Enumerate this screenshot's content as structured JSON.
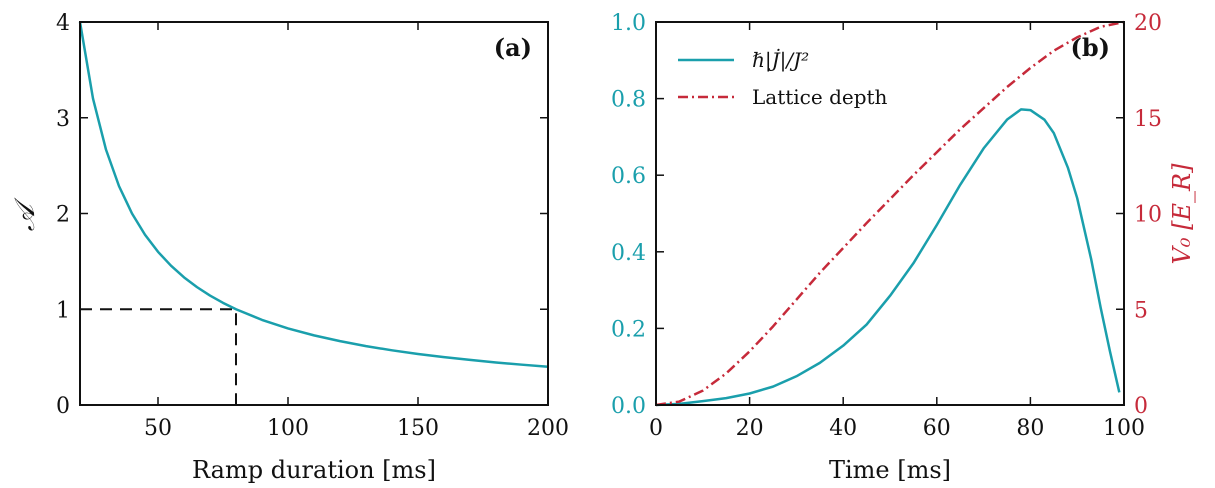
{
  "colors": {
    "teal": "#1a9fac",
    "red": "#c62a3a",
    "black": "#111111"
  },
  "chart_data": [
    {
      "type": "line",
      "panel_label": "(a)",
      "xlabel": "Ramp duration [ms]",
      "ylabel": "𝒜",
      "xlim": [
        20,
        200
      ],
      "ylim": [
        0,
        4
      ],
      "xticks": [
        50,
        100,
        150,
        200
      ],
      "yticks": [
        0,
        1,
        2,
        3,
        4
      ],
      "grid": false,
      "series": [
        {
          "color": "#1a9fac",
          "style": "solid",
          "x": [
            20,
            25,
            30,
            35,
            40,
            45,
            50,
            55,
            60,
            65,
            70,
            75,
            80,
            90,
            100,
            110,
            120,
            130,
            140,
            150,
            160,
            170,
            180,
            190,
            200
          ],
          "y": [
            4.0,
            3.2,
            2.667,
            2.286,
            2.0,
            1.778,
            1.6,
            1.455,
            1.333,
            1.231,
            1.143,
            1.067,
            1.0,
            0.889,
            0.8,
            0.727,
            0.667,
            0.615,
            0.571,
            0.533,
            0.5,
            0.471,
            0.444,
            0.421,
            0.4
          ]
        }
      ],
      "annotations": [
        {
          "style": "dashed",
          "color": "#111111",
          "x": [
            20,
            80,
            80
          ],
          "y": [
            1,
            1,
            0
          ]
        }
      ]
    },
    {
      "type": "line",
      "panel_label": "(b)",
      "xlabel": "Time [ms]",
      "xlim": [
        0,
        100
      ],
      "ylim": [
        0,
        1.0
      ],
      "ylim_right": [
        0,
        20
      ],
      "ylabel_right": "V₀ [E_R]",
      "xticks": [
        0,
        20,
        40,
        60,
        80,
        100
      ],
      "yticks": [
        "0.0",
        "0.2",
        "0.4",
        "0.6",
        "0.8",
        "1.0"
      ],
      "yticks_right": [
        0,
        5,
        10,
        15,
        20
      ],
      "grid": false,
      "legend_placement": "top-left",
      "series": [
        {
          "name": "ℏ|J̇|/J²",
          "axis": "left",
          "color": "#1a9fac",
          "style": "solid",
          "x": [
            0,
            5,
            10,
            15,
            20,
            25,
            30,
            35,
            40,
            45,
            50,
            55,
            60,
            65,
            70,
            75,
            78,
            80,
            83,
            85,
            88,
            90,
            93,
            95,
            97,
            99
          ],
          "y": [
            0.0,
            0.003,
            0.01,
            0.018,
            0.03,
            0.048,
            0.075,
            0.11,
            0.155,
            0.21,
            0.285,
            0.37,
            0.47,
            0.575,
            0.67,
            0.745,
            0.772,
            0.77,
            0.745,
            0.71,
            0.62,
            0.54,
            0.38,
            0.255,
            0.14,
            0.033
          ]
        },
        {
          "name": "Lattice depth",
          "axis": "right",
          "color": "#c62a3a",
          "style": "dashdot",
          "x": [
            0,
            5,
            10,
            15,
            20,
            25,
            30,
            35,
            40,
            45,
            50,
            55,
            60,
            65,
            70,
            75,
            80,
            85,
            90,
            95,
            100
          ],
          "y": [
            0.0,
            0.18,
            0.75,
            1.65,
            2.8,
            4.1,
            5.5,
            6.9,
            8.2,
            9.5,
            10.75,
            12.0,
            13.2,
            14.4,
            15.5,
            16.6,
            17.6,
            18.5,
            19.2,
            19.75,
            20.0
          ]
        }
      ]
    }
  ]
}
